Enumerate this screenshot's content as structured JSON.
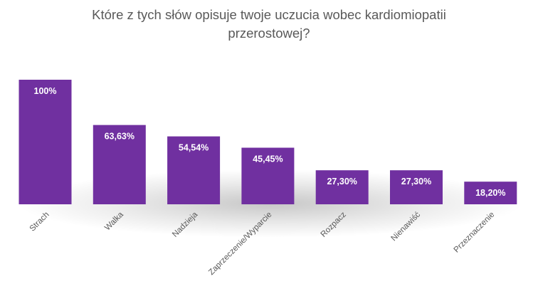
{
  "chart_data": {
    "type": "bar",
    "title": [
      "Które z tych słów opisuje twoje uczucia wobec kardiomiopatii",
      "przerostowej?"
    ],
    "categories": [
      "Strach",
      "Walka",
      "Nadzieja",
      "Zaprzeczenie/Wyparcie",
      "Rozpacz",
      "Nienawiść",
      "Przeznaczenie"
    ],
    "values": [
      100,
      63.63,
      54.54,
      45.45,
      27.3,
      27.3,
      18.2
    ],
    "data_labels": [
      "100%",
      "63,63%",
      "54,54%",
      "45,45%",
      "27,30%",
      "27,30%",
      "18,20%"
    ],
    "ylim": [
      0,
      100
    ],
    "grid": false,
    "legend": "none",
    "xlabel": "",
    "ylabel": "",
    "colors": {
      "bar": "#7030A0",
      "bar_label": "#FFFFFF",
      "title": "#595959",
      "category_label": "#595959"
    }
  }
}
